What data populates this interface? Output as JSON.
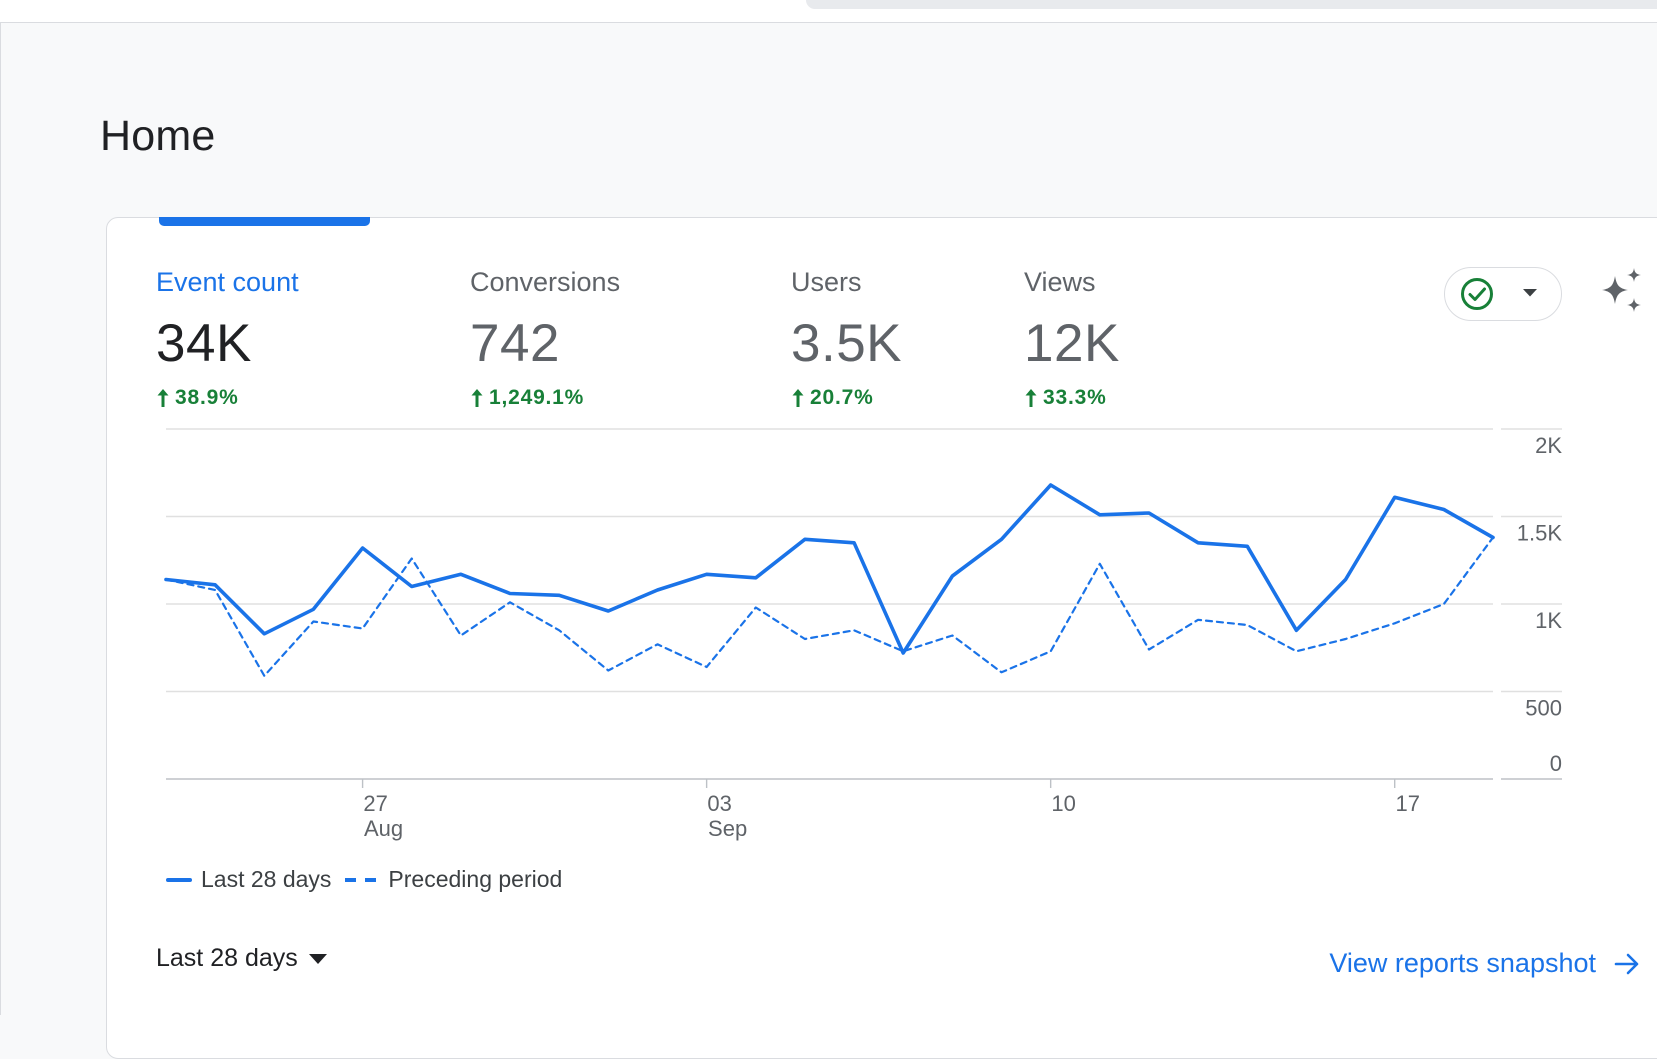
{
  "page": {
    "title": "Home"
  },
  "metrics": [
    {
      "name": "Event count",
      "value": "34K",
      "change": "38.9%",
      "active": true
    },
    {
      "name": "Conversions",
      "value": "742",
      "change": "1,249.1%",
      "active": false
    },
    {
      "name": "Users",
      "value": "3.5K",
      "change": "20.7%",
      "active": false
    },
    {
      "name": "Views",
      "value": "12K",
      "change": "33.3%",
      "active": false
    }
  ],
  "icons": {
    "status": "check-circle-icon",
    "status_menu": "dropdown-arrow-icon",
    "insights": "sparkle-icon",
    "trend": "arrow-up-icon",
    "link": "arrow-right-icon"
  },
  "colors": {
    "accent": "#1a73e8",
    "positive": "#188038",
    "text_primary": "#202124",
    "text_secondary": "#5f6368",
    "background": "#f8f9fa",
    "card": "#ffffff",
    "grid": "#dadce0"
  },
  "chart_data": {
    "type": "line",
    "title": "",
    "xlabel": "",
    "ylabel": "",
    "x": [
      "Aug 23",
      "Aug 24",
      "Aug 25",
      "Aug 26",
      "Aug 27",
      "Aug 28",
      "Aug 29",
      "Aug 30",
      "Aug 31",
      "Sep 01",
      "Sep 02",
      "Sep 03",
      "Sep 04",
      "Sep 05",
      "Sep 06",
      "Sep 07",
      "Sep 08",
      "Sep 09",
      "Sep 10",
      "Sep 11",
      "Sep 12",
      "Sep 13",
      "Sep 14",
      "Sep 15",
      "Sep 16",
      "Sep 17",
      "Sep 18",
      "Sep 19"
    ],
    "x_ticks": [
      {
        "day": "27",
        "month": "Aug",
        "at": "Aug 27"
      },
      {
        "day": "03",
        "month": "Sep",
        "at": "Sep 03"
      },
      {
        "day": "10",
        "month": "",
        "at": "Sep 10"
      },
      {
        "day": "17",
        "month": "",
        "at": "Sep 17"
      }
    ],
    "y_ticks": [
      "0",
      "500",
      "1K",
      "1.5K",
      "2K"
    ],
    "ylim": [
      0,
      2000
    ],
    "grid": true,
    "legend_position": "bottom-left",
    "series": [
      {
        "name": "Last 28 days",
        "style": "solid",
        "color": "#1a73e8",
        "values": [
          1140,
          1110,
          830,
          970,
          1320,
          1100,
          1170,
          1060,
          1050,
          960,
          1080,
          1170,
          1150,
          1370,
          1350,
          720,
          1160,
          1370,
          1680,
          1510,
          1520,
          1350,
          1330,
          850,
          1140,
          1610,
          1540,
          1380
        ]
      },
      {
        "name": "Preceding period",
        "style": "dashed",
        "color": "#1a73e8",
        "values": [
          1140,
          1080,
          590,
          900,
          860,
          1260,
          820,
          1010,
          850,
          620,
          770,
          640,
          980,
          800,
          850,
          730,
          820,
          610,
          730,
          1230,
          740,
          910,
          880,
          730,
          800,
          890,
          1000,
          1380
        ]
      }
    ]
  },
  "footer": {
    "date_range_label": "Last 28 days",
    "view_link_label": "View reports snapshot"
  }
}
